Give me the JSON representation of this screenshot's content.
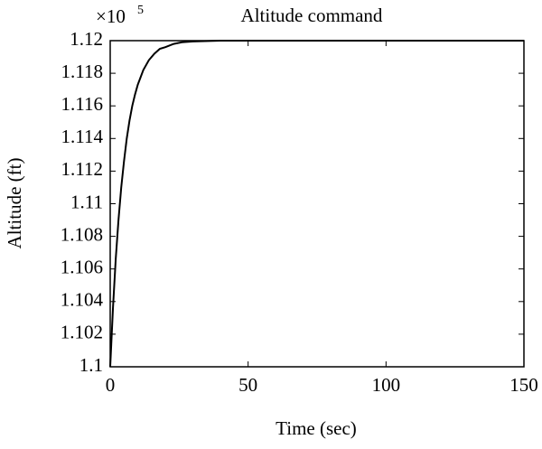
{
  "chart_data": {
    "type": "line",
    "title": "Altitude command",
    "xlabel": "Time (sec)",
    "ylabel": "Altitude (ft)",
    "y_multiplier": {
      "base": "×10",
      "exponent": "5"
    },
    "x": [
      0,
      1,
      2,
      3,
      4,
      5,
      6,
      7,
      8,
      9,
      10,
      12,
      14,
      16,
      18,
      20,
      23,
      26,
      30,
      40,
      150
    ],
    "series": [
      {
        "color": "#000000",
        "values": [
          1.1,
          1.1036,
          1.1066,
          1.109,
          1.111,
          1.1126,
          1.114,
          1.1151,
          1.116,
          1.1167,
          1.1173,
          1.1182,
          1.1188,
          1.1192,
          1.1195,
          1.1196,
          1.1198,
          1.1199,
          1.11995,
          1.12,
          1.12
        ]
      }
    ],
    "xlim": [
      0,
      150
    ],
    "xticks": [
      0,
      50,
      100,
      150
    ],
    "ylim": [
      1.1,
      1.12
    ],
    "yticks": [
      1.1,
      1.102,
      1.104,
      1.106,
      1.108,
      1.11,
      1.112,
      1.114,
      1.116,
      1.118,
      1.12
    ],
    "grid": false
  }
}
